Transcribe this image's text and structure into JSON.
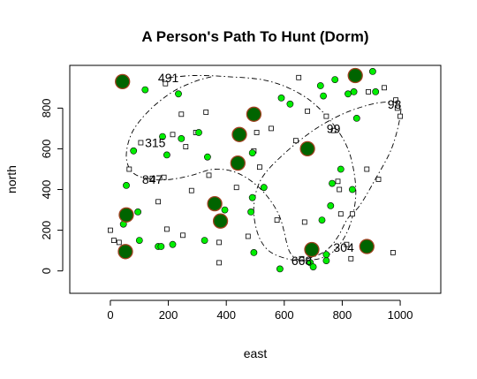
{
  "chart_data": {
    "type": "scatter",
    "title": "A Person's Path To Hunt (Dorm)",
    "xlabel": "east",
    "ylabel": "north",
    "xlim": [
      -140,
      1140
    ],
    "ylim": [
      -110,
      1010
    ],
    "xticks": [
      0,
      200,
      400,
      600,
      800,
      1000
    ],
    "yticks": [
      0,
      200,
      400,
      600,
      800
    ],
    "grid": false,
    "legend": "none",
    "colors": {
      "green_point_fill": "#00ee00",
      "large_point_fill": "#006400",
      "large_point_edge": "#a0401f",
      "point_edge": "#000000",
      "path_line": "#000000"
    },
    "series": [
      {
        "marker": "small-open-square",
        "points": [
          [
            0,
            200
          ],
          [
            12,
            150
          ],
          [
            30,
            140
          ],
          [
            65,
            500
          ],
          [
            105,
            630
          ],
          [
            145,
            455
          ],
          [
            165,
            340
          ],
          [
            185,
            460
          ],
          [
            190,
            920
          ],
          [
            195,
            205
          ],
          [
            215,
            670
          ],
          [
            245,
            770
          ],
          [
            250,
            175
          ],
          [
            260,
            610
          ],
          [
            280,
            395
          ],
          [
            295,
            680
          ],
          [
            330,
            780
          ],
          [
            340,
            470
          ],
          [
            375,
            40
          ],
          [
            375,
            140
          ],
          [
            435,
            410
          ],
          [
            475,
            170
          ],
          [
            495,
            590
          ],
          [
            505,
            680
          ],
          [
            515,
            510
          ],
          [
            555,
            700
          ],
          [
            575,
            250
          ],
          [
            640,
            640
          ],
          [
            650,
            950
          ],
          [
            660,
            60
          ],
          [
            670,
            240
          ],
          [
            680,
            785
          ],
          [
            745,
            760
          ],
          [
            770,
            690
          ],
          [
            785,
            440
          ],
          [
            790,
            400
          ],
          [
            795,
            280
          ],
          [
            815,
            130
          ],
          [
            830,
            60
          ],
          [
            835,
            280
          ],
          [
            885,
            500
          ],
          [
            890,
            880
          ],
          [
            925,
            450
          ],
          [
            945,
            900
          ],
          [
            975,
            90
          ],
          [
            985,
            840
          ],
          [
            990,
            800
          ],
          [
            1000,
            760
          ]
        ]
      },
      {
        "marker": "small-green-circle",
        "points": [
          [
            38,
            90
          ],
          [
            45,
            230
          ],
          [
            55,
            420
          ],
          [
            80,
            590
          ],
          [
            95,
            290
          ],
          [
            100,
            150
          ],
          [
            120,
            890
          ],
          [
            165,
            120
          ],
          [
            175,
            120
          ],
          [
            180,
            660
          ],
          [
            195,
            570
          ],
          [
            215,
            130
          ],
          [
            235,
            870
          ],
          [
            245,
            650
          ],
          [
            305,
            680
          ],
          [
            325,
            150
          ],
          [
            335,
            560
          ],
          [
            395,
            300
          ],
          [
            485,
            290
          ],
          [
            490,
            360
          ],
          [
            490,
            580
          ],
          [
            495,
            90
          ],
          [
            530,
            410
          ],
          [
            585,
            10
          ],
          [
            590,
            850
          ],
          [
            620,
            820
          ],
          [
            690,
            40
          ],
          [
            700,
            20
          ],
          [
            725,
            910
          ],
          [
            730,
            250
          ],
          [
            735,
            860
          ],
          [
            745,
            50
          ],
          [
            745,
            80
          ],
          [
            760,
            320
          ],
          [
            765,
            430
          ],
          [
            775,
            940
          ],
          [
            795,
            500
          ],
          [
            820,
            870
          ],
          [
            835,
            400
          ],
          [
            840,
            880
          ],
          [
            850,
            750
          ],
          [
            905,
            980
          ],
          [
            915,
            880
          ]
        ]
      },
      {
        "marker": "large-dark-circle",
        "points": [
          [
            42,
            930
          ],
          [
            52,
            95
          ],
          [
            55,
            275
          ],
          [
            360,
            330
          ],
          [
            380,
            245
          ],
          [
            440,
            530
          ],
          [
            445,
            670
          ],
          [
            495,
            770
          ],
          [
            680,
            600
          ],
          [
            695,
            105
          ],
          [
            845,
            960
          ],
          [
            885,
            120
          ]
        ]
      }
    ],
    "labels": [
      {
        "text": "491",
        "x": 200,
        "y": 950
      },
      {
        "text": "98",
        "x": 980,
        "y": 820
      },
      {
        "text": "99",
        "x": 770,
        "y": 700
      },
      {
        "text": "315",
        "x": 155,
        "y": 630
      },
      {
        "text": "847",
        "x": 145,
        "y": 450
      },
      {
        "text": "304",
        "x": 805,
        "y": 115
      },
      {
        "text": "668",
        "x": 660,
        "y": 50
      }
    ],
    "path": [
      [
        200,
        950
      ],
      [
        290,
        960
      ],
      [
        400,
        955
      ],
      [
        540,
        935
      ],
      [
        655,
        870
      ],
      [
        740,
        770
      ],
      [
        810,
        630
      ],
      [
        840,
        490
      ],
      [
        845,
        340
      ],
      [
        815,
        185
      ],
      [
        755,
        80
      ],
      [
        665,
        50
      ],
      [
        585,
        70
      ],
      [
        535,
        115
      ],
      [
        505,
        200
      ],
      [
        495,
        320
      ],
      [
        520,
        450
      ],
      [
        595,
        570
      ],
      [
        700,
        690
      ],
      [
        800,
        770
      ],
      [
        890,
        815
      ],
      [
        955,
        830
      ],
      [
        995,
        820
      ],
      [
        1000,
        760
      ],
      [
        970,
        600
      ],
      [
        910,
        440
      ],
      [
        860,
        320
      ],
      [
        820,
        260
      ],
      [
        790,
        180
      ],
      [
        760,
        120
      ],
      [
        720,
        80
      ],
      [
        665,
        55
      ],
      [
        640,
        60
      ],
      [
        620,
        90
      ],
      [
        610,
        130
      ],
      [
        580,
        280
      ],
      [
        520,
        400
      ],
      [
        440,
        480
      ],
      [
        360,
        500
      ],
      [
        280,
        470
      ],
      [
        210,
        450
      ],
      [
        145,
        450
      ],
      [
        80,
        480
      ],
      [
        55,
        560
      ],
      [
        75,
        680
      ],
      [
        135,
        790
      ],
      [
        215,
        880
      ],
      [
        290,
        930
      ],
      [
        350,
        955
      ]
    ]
  }
}
